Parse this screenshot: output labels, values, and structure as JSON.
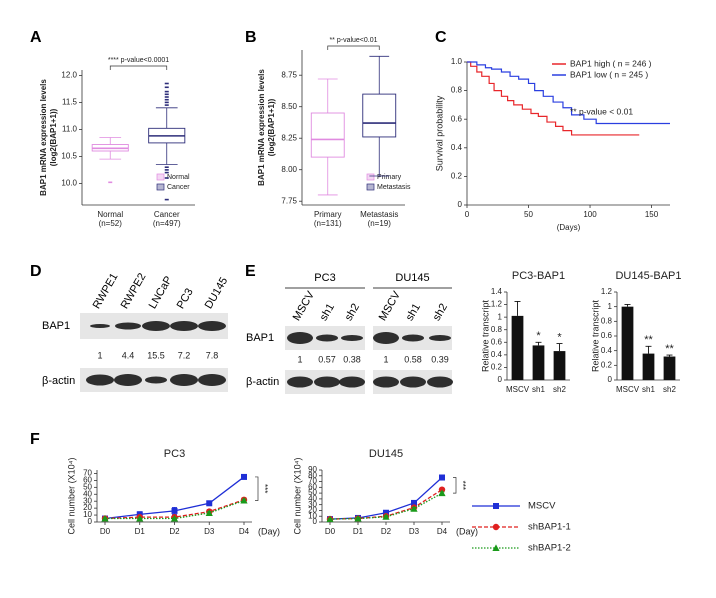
{
  "panel_labels": [
    "A",
    "B",
    "C",
    "D",
    "E",
    "F"
  ],
  "chart_data": [
    {
      "type": "box",
      "ylabel": [
        "BAP1 mRNA expression levels",
        "(log2(BAP1+1))"
      ],
      "categories": [
        "Normal",
        "Cancer"
      ],
      "category_notes": [
        "(n=52)",
        "(n=497)"
      ],
      "colors": [
        "#e08be0",
        "#2e2e7a"
      ],
      "ylim": [
        9.6,
        12.1
      ],
      "yticks": [
        {
          "value": 10,
          "label": "10.0"
        },
        {
          "value": 10.5,
          "label": "10.5"
        },
        {
          "value": 11,
          "label": "11.0"
        },
        {
          "value": 11.5,
          "label": "11.5"
        },
        {
          "value": 12,
          "label": "12.0"
        }
      ],
      "annotation": "**** p-value<0.0001",
      "values": [
        {
          "whisker_low": 10.45,
          "q1": 10.6,
          "median": 10.65,
          "q3": 10.72,
          "whisker_high": 10.85,
          "outliers": [
            10.02
          ]
        },
        {
          "whisker_low": 10.35,
          "q1": 10.75,
          "median": 10.88,
          "q3": 11.02,
          "whisker_high": 11.4,
          "outliers": [
            11.45,
            11.5,
            11.55,
            11.6,
            11.65,
            11.7,
            11.78,
            11.85,
            10.3,
            10.25,
            10.2,
            10.1,
            9.7
          ]
        }
      ]
    },
    {
      "type": "box",
      "ylabel": [
        "BAP1 mRNA expression levels",
        "(log2(BAP1+1))"
      ],
      "categories": [
        "Primary",
        "Metastasis"
      ],
      "category_notes": [
        "(n=131)",
        "(n=19)"
      ],
      "colors": [
        "#e08be0",
        "#2e2e7a"
      ],
      "ylim": [
        7.72,
        8.95
      ],
      "yticks": [
        7.75,
        {
          "value": 8,
          "label": "8.00"
        },
        8.25,
        {
          "value": 8.5,
          "label": "8.50"
        },
        8.75
      ],
      "annotation": "** p-value<0.01",
      "values": [
        {
          "whisker_low": 7.8,
          "q1": 8.1,
          "median": 8.24,
          "q3": 8.45,
          "whisker_high": 8.72,
          "outliers": []
        },
        {
          "whisker_low": 7.95,
          "q1": 8.26,
          "median": 8.37,
          "q3": 8.6,
          "whisker_high": 8.9,
          "outliers": []
        }
      ]
    },
    {
      "type": "line",
      "step": true,
      "xlabel": "(Days)",
      "ylabel": "Survival probability",
      "xlim": [
        0,
        165
      ],
      "xticks": [
        0,
        50,
        100,
        150
      ],
      "ylim": [
        0,
        1
      ],
      "yticks": [
        0,
        0.2,
        0.4,
        0.6,
        0.8,
        {
          "value": 1,
          "label": "1.0"
        }
      ],
      "annotation": "** p-value < 0.01",
      "legend": "upper right",
      "series": [
        {
          "name": "BAP1 high ( n = 246 )",
          "color": "#e8262a",
          "x": [
            0,
            3,
            8,
            12,
            18,
            22,
            28,
            33,
            38,
            45,
            52,
            58,
            65,
            72,
            78,
            85,
            100,
            140
          ],
          "values": [
            1,
            0.97,
            0.93,
            0.9,
            0.85,
            0.8,
            0.76,
            0.73,
            0.7,
            0.67,
            0.64,
            0.62,
            0.58,
            0.55,
            0.52,
            0.49,
            0.49,
            0.49
          ]
        },
        {
          "name": "BAP1 low ( n = 245 )",
          "color": "#2a3fe0",
          "x": [
            0,
            8,
            15,
            20,
            28,
            35,
            42,
            50,
            55,
            62,
            70,
            78,
            85,
            95,
            105,
            120,
            165
          ],
          "values": [
            1,
            0.98,
            0.96,
            0.95,
            0.93,
            0.9,
            0.88,
            0.85,
            0.8,
            0.76,
            0.72,
            0.68,
            0.63,
            0.6,
            0.57,
            0.57,
            0.57
          ]
        }
      ]
    },
    {
      "type": "bar",
      "title": "PC3-BAP1",
      "ylabel": "Relative transcript",
      "color": "#111111",
      "categories": [
        "MSCV",
        "sh1",
        "sh2"
      ],
      "values": [
        1.02,
        0.55,
        0.46
      ],
      "errors": [
        0.23,
        0.05,
        0.12
      ],
      "annotations": [
        null,
        "*",
        "*"
      ],
      "ylim": [
        0,
        1.4
      ],
      "yticks": [
        0,
        0.2,
        0.4,
        0.6,
        0.8,
        1,
        1.2,
        1.4
      ]
    },
    {
      "type": "bar",
      "title": "DU145-BAP1",
      "ylabel": "Relative transcript",
      "color": "#111111",
      "categories": [
        "MSCV",
        "sh1",
        "sh2"
      ],
      "values": [
        1.0,
        0.36,
        0.32
      ],
      "errors": [
        0.03,
        0.1,
        0.02
      ],
      "annotations": [
        null,
        "**",
        "**"
      ],
      "ylim": [
        0,
        1.2
      ],
      "yticks": [
        0,
        0.2,
        0.4,
        0.6,
        0.8,
        1,
        1.2
      ]
    },
    {
      "type": "line",
      "title": "PC3",
      "xlabel": "(Day)",
      "ylabel": "Cell number (X10⁴)",
      "categories": [
        "D0",
        "D1",
        "D2",
        "D3",
        "D4"
      ],
      "ylim": [
        0,
        75
      ],
      "yticks": [
        0,
        10,
        20,
        30,
        40,
        50,
        60,
        70
      ],
      "annotation": "***",
      "series": [
        {
          "name": "MSCV",
          "color": "#1f2fd6",
          "dash": "solid",
          "marker": "square",
          "values": [
            5,
            11,
            16,
            27,
            65
          ],
          "errors": [
            1,
            4,
            5,
            3,
            3
          ]
        },
        {
          "name": "shBAP1-1",
          "color": "#e0201f",
          "dash": "dashed",
          "marker": "circle",
          "values": [
            5,
            7,
            7,
            15,
            32
          ],
          "errors": [
            1,
            2,
            2,
            3,
            3
          ]
        },
        {
          "name": "shBAP1-2",
          "color": "#1a9a1a",
          "dash": "dotted",
          "marker": "triangle",
          "values": [
            5,
            5,
            5,
            13,
            31
          ],
          "errors": [
            1,
            1,
            1,
            2,
            2
          ]
        }
      ]
    },
    {
      "type": "line",
      "title": "DU145",
      "xlabel": "(Day)",
      "ylabel": "Cell number (X10⁴)",
      "categories": [
        "D0",
        "D1",
        "D2",
        "D3",
        "D4"
      ],
      "ylim": [
        0,
        90
      ],
      "yticks": [
        0,
        10,
        20,
        30,
        40,
        50,
        60,
        70,
        80,
        90
      ],
      "annotation": "***",
      "series": [
        {
          "color": "#1f2fd6",
          "dash": "solid",
          "marker": "square",
          "values": [
            5,
            7,
            16,
            33,
            77
          ],
          "errors": [
            1,
            3,
            4,
            4,
            4
          ]
        },
        {
          "color": "#e0201f",
          "dash": "dashed",
          "marker": "circle",
          "values": [
            5,
            6,
            10,
            25,
            56
          ],
          "errors": [
            1,
            2,
            2,
            2,
            3
          ]
        },
        {
          "color": "#1a9a1a",
          "dash": "dotted",
          "marker": "triangle",
          "values": [
            5,
            6,
            9,
            23,
            50
          ],
          "errors": [
            1,
            2,
            2,
            2,
            2
          ]
        }
      ]
    }
  ],
  "blots": [
    {
      "lanes": [
        "RWPE1",
        "RWPE2",
        "LNCaP",
        "PC3",
        "DU145"
      ],
      "rows": [
        "BAP1",
        "β-actin"
      ],
      "ratios": [
        1,
        4.4,
        15.5,
        7.2,
        7.8
      ]
    },
    {
      "groups": [
        "PC3",
        "DU145"
      ],
      "lanes": [
        "MSCV",
        "sh1",
        "sh2"
      ],
      "rows": [
        "BAP1",
        "β-actin"
      ],
      "ratios": [
        [
          1,
          0.57,
          0.38
        ],
        [
          1,
          0.58,
          0.39
        ]
      ]
    }
  ]
}
